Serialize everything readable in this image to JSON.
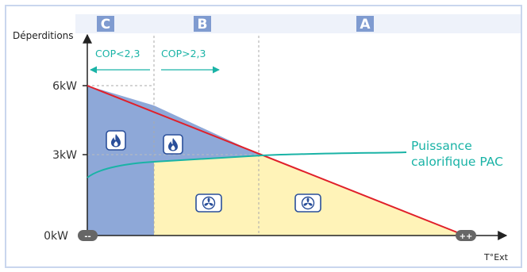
{
  "zones": [
    {
      "letter": "C",
      "x_center": 133
    },
    {
      "letter": "B",
      "x_center": 255
    },
    {
      "letter": "A",
      "x_center": 460
    }
  ],
  "yaxis_label": "Déperditions",
  "xaxis_label": "T°Ext",
  "ticks": [
    "6kW",
    "3kW",
    "0kW"
  ],
  "cop": [
    {
      "label": "COP<2,3",
      "direction": "left"
    },
    {
      "label": "COP>2,3",
      "direction": "right"
    }
  ],
  "axis_ends": {
    "left": "--",
    "right": "++"
  },
  "curve_label": [
    "Puissance",
    "calorifique PAC"
  ],
  "icons": [
    {
      "type": "flame",
      "zone": "C"
    },
    {
      "type": "flame",
      "zone": "B"
    },
    {
      "type": "fan",
      "zone": "B"
    },
    {
      "type": "fan",
      "zone": "A"
    }
  ],
  "colors": {
    "zone_c": "#8ea8d8",
    "zone_b": "#fff3b8",
    "loss_line": "#e0202a",
    "pac_curve": "#1ab3a6",
    "badge": "#7f9bd0",
    "badge_bg": "#e8eef8",
    "border": "#8ea8d8"
  }
}
